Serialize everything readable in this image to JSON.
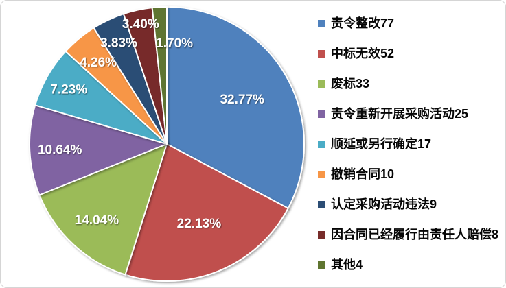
{
  "window": {
    "background_color": "#FFFFFF",
    "border_color": "#D5D5D5"
  },
  "chart_data": {
    "type": "pie",
    "title": "",
    "legend_position": "right",
    "direction": "clockwise",
    "start_angle_deg": 0,
    "total": 235,
    "percent_format": "0.00%",
    "slices": [
      {
        "label": "责令整改77",
        "value": 77,
        "percent_label": "32.77%",
        "color": "#4F81BD"
      },
      {
        "label": "中标无效52",
        "value": 52,
        "percent_label": "22.13%",
        "color": "#C0504D"
      },
      {
        "label": "废标33",
        "value": 33,
        "percent_label": "14.04%",
        "color": "#9BBB59"
      },
      {
        "label": "责令重新开展采购活动25",
        "value": 25,
        "percent_label": "10.64%",
        "color": "#8064A2"
      },
      {
        "label": "顺延或另行确定17",
        "value": 17,
        "percent_label": "7.23%",
        "color": "#4BACC6"
      },
      {
        "label": "撤销合同10",
        "value": 10,
        "percent_label": "4.26%",
        "color": "#F79646"
      },
      {
        "label": "认定采购活动违法9",
        "value": 9,
        "percent_label": "3.83%",
        "color": "#2C4D75"
      },
      {
        "label": "因合同已经履行由责任人赔偿8",
        "value": 8,
        "percent_label": "3.40%",
        "color": "#772C2A"
      },
      {
        "label": "其他4",
        "value": 4,
        "percent_label": "1.70%",
        "color": "#5F7530"
      }
    ]
  }
}
